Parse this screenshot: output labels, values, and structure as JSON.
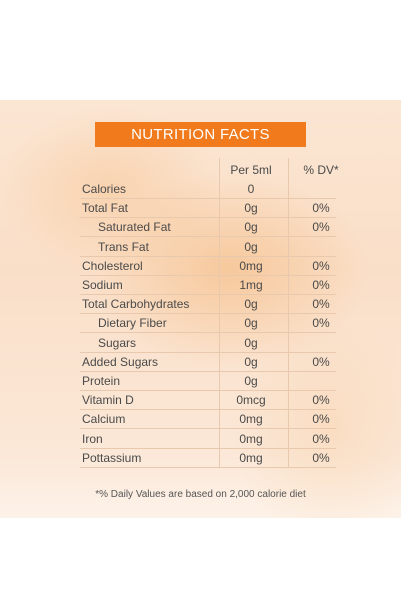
{
  "header": {
    "title": "NUTRITION FACTS"
  },
  "columns": {
    "per": "Per 5ml",
    "dv": "% DV*"
  },
  "rows": [
    {
      "name": "Calories",
      "amount": "0",
      "dv": ""
    },
    {
      "name": "Total Fat",
      "amount": "0g",
      "dv": "0%"
    },
    {
      "name": "Saturated Fat",
      "amount": "0g",
      "dv": "0%",
      "sub": true
    },
    {
      "name": "Trans Fat",
      "amount": "0g",
      "dv": "",
      "sub": true
    },
    {
      "name": "Cholesterol",
      "amount": "0mg",
      "dv": "0%"
    },
    {
      "name": "Sodium",
      "amount": "1mg",
      "dv": "0%"
    },
    {
      "name": "Total Carbohydrates",
      "amount": "0g",
      "dv": "0%"
    },
    {
      "name": "Dietary Fiber",
      "amount": "0g",
      "dv": "0%",
      "sub": true
    },
    {
      "name": "Sugars",
      "amount": "0g",
      "dv": "",
      "sub": true
    },
    {
      "name": "Added Sugars",
      "amount": "0g",
      "dv": "0%"
    },
    {
      "name": "Protein",
      "amount": "0g",
      "dv": ""
    },
    {
      "name": "Vitamin D",
      "amount": "0mcg",
      "dv": "0%"
    },
    {
      "name": "Calcium",
      "amount": "0mg",
      "dv": "0%"
    },
    {
      "name": "Iron",
      "amount": "0mg",
      "dv": "0%"
    },
    {
      "name": "Pottassium",
      "amount": "0mg",
      "dv": "0%"
    }
  ],
  "footnote": "*% Daily Values are based on 2,000 calorie diet",
  "colors": {
    "header_bg": "#f07a1c",
    "rule": "#e9c9ad",
    "text": "#4a4a4a"
  }
}
